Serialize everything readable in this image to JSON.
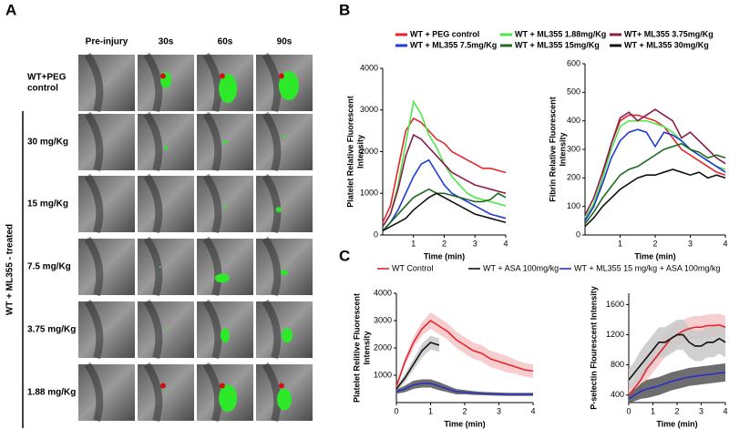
{
  "panel_a": {
    "label": "A",
    "columns": [
      "Pre-injury",
      "30s",
      "60s",
      "90s"
    ],
    "rows": [
      [
        "WT+PEG",
        "control"
      ],
      [
        "30 mg/Kg"
      ],
      [
        "15 mg/Kg"
      ],
      [
        "7.5 mg/Kg"
      ],
      [
        "3.75 mg/Kg"
      ],
      [
        "1.88 mg/Kg"
      ]
    ],
    "group_label": "WT + ML355 - treated"
  },
  "panel_b": {
    "label": "B"
  },
  "panel_c": {
    "label": "C"
  },
  "chart_data": [
    {
      "type": "line",
      "ylabel": [
        "Platelet Relative Fluorescent",
        "Intensity"
      ],
      "xlabel": "Time (min)",
      "x": [
        0,
        0.25,
        0.5,
        0.75,
        1,
        1.25,
        1.5,
        1.75,
        2,
        2.25,
        2.5,
        2.75,
        3,
        3.25,
        3.5,
        3.75,
        4
      ],
      "xlim": [
        0,
        4
      ],
      "ylim": [
        0,
        4000
      ],
      "xticks": [
        1,
        2,
        3,
        4
      ],
      "yticks": [
        0,
        1000,
        2000,
        3000,
        4000
      ],
      "series": [
        {
          "name": "WT + PEG  control",
          "color": "#e3262b",
          "values": [
            300,
            700,
            1600,
            2500,
            2800,
            2700,
            2500,
            2300,
            2200,
            2000,
            1900,
            1800,
            1700,
            1600,
            1600,
            1550,
            1500
          ]
        },
        {
          "name": "WT + ML355 1.88mg/Kg",
          "color": "#4ee84a",
          "values": [
            200,
            500,
            1200,
            2200,
            3200,
            2900,
            2400,
            2100,
            1700,
            1400,
            1200,
            1000,
            900,
            850,
            800,
            750,
            700
          ]
        },
        {
          "name": "WT+ ML355 3.75mg/Kg",
          "color": "#8b1c4e",
          "values": [
            200,
            500,
            1100,
            1900,
            2400,
            2300,
            2100,
            1900,
            1700,
            1500,
            1400,
            1300,
            1200,
            1150,
            1100,
            1050,
            1000
          ]
        },
        {
          "name": "WT + ML355 7.5mg/Kg",
          "color": "#1f3ad6",
          "values": [
            100,
            300,
            600,
            1000,
            1400,
            1700,
            1800,
            1500,
            1200,
            1000,
            900,
            800,
            700,
            600,
            500,
            450,
            400
          ]
        },
        {
          "name": "WT + ML355 15mg/Kg",
          "color": "#1d6a1d",
          "values": [
            100,
            300,
            500,
            700,
            900,
            1000,
            1100,
            1000,
            1000,
            950,
            900,
            850,
            800,
            800,
            850,
            1000,
            900
          ]
        },
        {
          "name": "WT + ML355 30mg/Kg",
          "color": "#111111",
          "values": [
            100,
            200,
            300,
            400,
            600,
            750,
            900,
            1000,
            900,
            800,
            700,
            600,
            500,
            450,
            400,
            350,
            300
          ]
        }
      ]
    },
    {
      "type": "line",
      "ylabel": [
        "Fibrin Relative Fluorescent",
        "Intensity"
      ],
      "xlabel": "Time (min)",
      "x": [
        0,
        0.25,
        0.5,
        0.75,
        1,
        1.25,
        1.5,
        1.75,
        2,
        2.25,
        2.5,
        2.75,
        3,
        3.25,
        3.5,
        3.75,
        4
      ],
      "xlim": [
        0,
        4
      ],
      "ylim": [
        0,
        600
      ],
      "xticks": [
        1,
        2,
        3,
        4
      ],
      "yticks": [
        0,
        100,
        200,
        300,
        400,
        500,
        600
      ],
      "series": [
        {
          "color": "#e3262b",
          "values": [
            50,
            100,
            200,
            320,
            400,
            420,
            420,
            410,
            400,
            380,
            340,
            300,
            280,
            260,
            240,
            220,
            210
          ]
        },
        {
          "color": "#4ee84a",
          "values": [
            60,
            110,
            200,
            300,
            380,
            400,
            400,
            400,
            390,
            380,
            360,
            330,
            300,
            280,
            260,
            240,
            230
          ]
        },
        {
          "color": "#8b1c4e",
          "values": [
            70,
            130,
            220,
            320,
            410,
            430,
            400,
            420,
            440,
            420,
            400,
            340,
            360,
            330,
            300,
            270,
            250
          ]
        },
        {
          "color": "#1f3ad6",
          "values": [
            50,
            100,
            180,
            270,
            330,
            360,
            370,
            360,
            310,
            360,
            350,
            330,
            300,
            280,
            260,
            240,
            220
          ]
        },
        {
          "color": "#1d6a1d",
          "values": [
            40,
            80,
            130,
            170,
            210,
            230,
            240,
            260,
            280,
            300,
            310,
            320,
            300,
            290,
            270,
            280,
            270
          ]
        },
        {
          "color": "#111111",
          "values": [
            30,
            60,
            100,
            130,
            160,
            180,
            200,
            210,
            210,
            220,
            230,
            220,
            210,
            220,
            200,
            210,
            200
          ]
        }
      ]
    },
    {
      "type": "line",
      "ylabel": [
        "Platelet  Relitive Fluorescent",
        "Intensity"
      ],
      "xlabel": "Time (min)",
      "x": [
        0,
        0.25,
        0.5,
        0.75,
        1,
        1.25,
        1.5,
        1.75,
        2,
        2.25,
        2.5,
        2.75,
        3,
        3.25,
        3.5,
        3.75,
        4
      ],
      "xlim": [
        0,
        4
      ],
      "ylim": [
        0,
        4000
      ],
      "xticks": [
        0,
        1,
        2,
        3,
        4
      ],
      "yticks": [
        1000,
        2000,
        3000,
        4000
      ],
      "series": [
        {
          "name": "WT  Control",
          "color": "#e3262b",
          "band": "#f6c5c8",
          "values": [
            600,
            1500,
            2200,
            2700,
            3000,
            2800,
            2600,
            2300,
            2100,
            1900,
            1800,
            1600,
            1500,
            1400,
            1300,
            1200,
            1150
          ],
          "error": [
            100,
            150,
            200,
            250,
            300,
            300,
            300,
            300,
            300,
            300,
            300,
            300,
            300,
            300,
            250,
            250,
            250
          ]
        },
        {
          "name": "WT + ASA 100mg/kg",
          "color": "#111111",
          "band": "#c8c8c8",
          "values": [
            500,
            900,
            1400,
            1900,
            2200,
            2100,
            null,
            null,
            null,
            null,
            null,
            null,
            null,
            null,
            null,
            null,
            null
          ],
          "error": [
            100,
            150,
            200,
            250,
            250,
            250,
            null,
            null,
            null,
            null,
            null,
            null,
            null,
            null,
            null,
            null,
            null
          ]
        },
        {
          "name": "WT + ML355 15 mg/kg + ASA 100mg/kg",
          "color": "#2b2fc4",
          "band": "#555555",
          "values": [
            400,
            500,
            650,
            700,
            700,
            600,
            500,
            400,
            380,
            350,
            330,
            320,
            310,
            300,
            300,
            300,
            300
          ],
          "error": [
            80,
            120,
            150,
            150,
            150,
            150,
            120,
            100,
            80,
            70,
            60,
            60,
            60,
            60,
            60,
            60,
            60
          ]
        }
      ]
    },
    {
      "type": "line",
      "ylabel": [
        "P-selectin Flourescent Intensity"
      ],
      "xlabel": "Time (min)",
      "x": [
        0,
        0.25,
        0.5,
        0.75,
        1,
        1.25,
        1.5,
        1.75,
        2,
        2.25,
        2.5,
        2.75,
        3,
        3.25,
        3.5,
        3.75,
        4
      ],
      "xlim": [
        0,
        4
      ],
      "ylim": [
        300,
        1750
      ],
      "xticks": [
        0,
        1,
        2,
        3,
        4
      ],
      "yticks": [
        400,
        800,
        1200,
        1600
      ],
      "series": [
        {
          "color": "#e3262b",
          "band": "#f6c5c8",
          "values": [
            400,
            500,
            600,
            750,
            850,
            950,
            1050,
            1150,
            1200,
            1250,
            1280,
            1300,
            1300,
            1320,
            1320,
            1330,
            1300
          ],
          "error": [
            80,
            100,
            120,
            150,
            150,
            150,
            150,
            150,
            150,
            150,
            150,
            150,
            150,
            150,
            150,
            150,
            150
          ]
        },
        {
          "color": "#111111",
          "band": "#c8c8c8",
          "values": [
            600,
            700,
            800,
            900,
            1000,
            1100,
            1100,
            1150,
            1200,
            1200,
            1100,
            1050,
            1050,
            1100,
            1100,
            1150,
            1100
          ],
          "error": [
            150,
            150,
            200,
            200,
            200,
            200,
            200,
            200,
            200,
            200,
            200,
            200,
            200,
            200,
            200,
            200,
            200
          ]
        },
        {
          "color": "#2b2fc4",
          "band": "#555555",
          "values": [
            350,
            400,
            450,
            480,
            500,
            520,
            550,
            580,
            600,
            620,
            640,
            650,
            660,
            670,
            680,
            690,
            700
          ],
          "error": [
            60,
            80,
            100,
            120,
            120,
            120,
            120,
            120,
            120,
            120,
            120,
            120,
            120,
            120,
            120,
            120,
            120
          ]
        }
      ]
    }
  ]
}
